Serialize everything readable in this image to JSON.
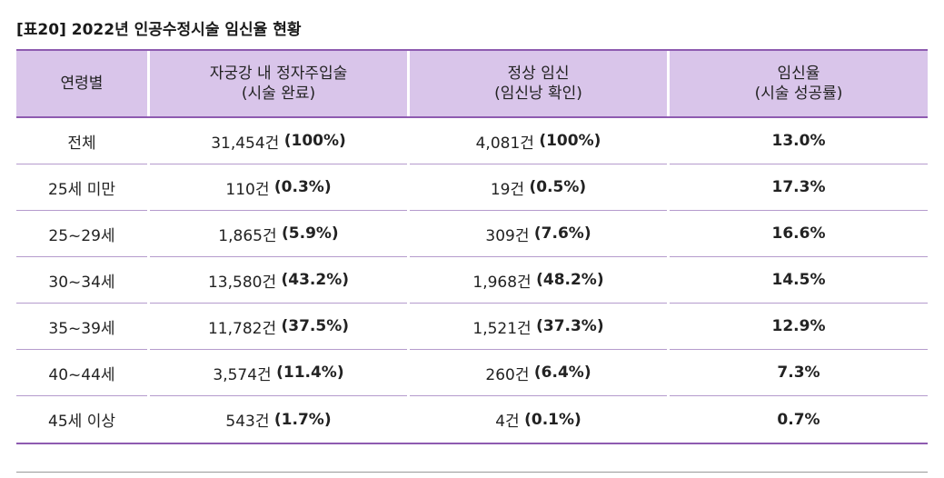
{
  "title": "[표20] 2022년 인공수정시술 임신율 현황",
  "headers": [
    {
      "line1": "연령별",
      "line2": ""
    },
    {
      "line1": "자궁강 내 정자주입술",
      "line2": "(시술 완료)"
    },
    {
      "line1": "정상 임신",
      "line2": "(임신낭 확인)"
    },
    {
      "line1": "임신율",
      "line2": "(시술 성공률)"
    }
  ],
  "rows": [
    {
      "age": "전체",
      "procedures": "31,454건",
      "procedures_pct": "(100%)",
      "pregnancies": "4,081건",
      "pregnancies_pct": "(100%)",
      "rate": "13.0%"
    },
    {
      "age": "25세 미만",
      "procedures": "110건",
      "procedures_pct": "(0.3%)",
      "pregnancies": "19건",
      "pregnancies_pct": "(0.5%)",
      "rate": "17.3%"
    },
    {
      "age": "25~29세",
      "procedures": "1,865건",
      "procedures_pct": "(5.9%)",
      "pregnancies": "309건",
      "pregnancies_pct": "(7.6%)",
      "rate": "16.6%"
    },
    {
      "age": "30~34세",
      "procedures": "13,580건",
      "procedures_pct": "(43.2%)",
      "pregnancies": "1,968건",
      "pregnancies_pct": "(48.2%)",
      "rate": "14.5%"
    },
    {
      "age": "35~39세",
      "procedures": "11,782건",
      "procedures_pct": "(37.5%)",
      "pregnancies": "1,521건",
      "pregnancies_pct": "(37.3%)",
      "rate": "12.9%"
    },
    {
      "age": "40~44세",
      "procedures": "3,574건",
      "procedures_pct": "(11.4%)",
      "pregnancies": "260건",
      "pregnancies_pct": "(6.4%)",
      "rate": "7.3%"
    },
    {
      "age": "45세 이상",
      "procedures": "543건",
      "procedures_pct": "(1.7%)",
      "pregnancies": "4건",
      "pregnancies_pct": "(0.1%)",
      "rate": "0.7%"
    }
  ],
  "colors": {
    "header_bg": "#d9c5ea",
    "accent_line": "#8e5bb0",
    "row_line": "#b59bcd"
  }
}
